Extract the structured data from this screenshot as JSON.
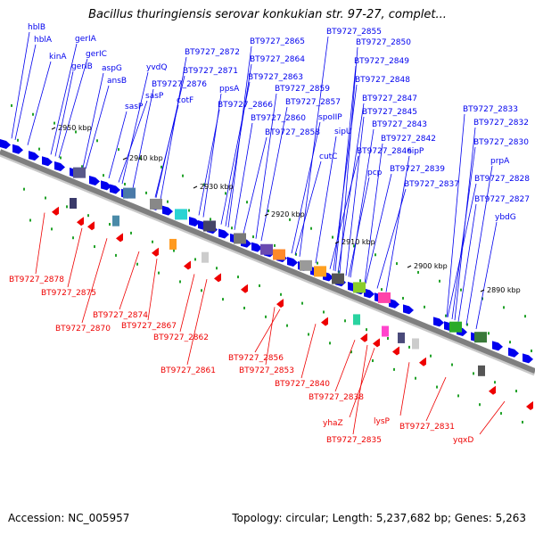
{
  "title": "Bacillus thuringiensis serovar konkukian str. 97-27, complet...",
  "footer": {
    "accession": "Accession: NC_005957",
    "summary": "Topology: circular; Length: 5,237,682 bp; Genes: 5,263"
  },
  "colors": {
    "plus_strand": "#0000ee",
    "minus_strand": "#ee0000",
    "backbone": "#7f7f7f",
    "tick": "#22a22a"
  },
  "scale_ticks": [
    "2950 kbp",
    "2940 kbp",
    "2930 kbp",
    "2920 kbp",
    "2910 kbp",
    "2900 kbp",
    "2890 kbp"
  ],
  "plus_labels": [
    "hblB",
    "hblA",
    "kinA",
    "gerIA",
    "gerIC",
    "gerIB",
    "aspG",
    "ansB",
    "yvdQ",
    "sasP",
    "sasP",
    "BT9727_2876",
    "cotF",
    "BT9727_2872",
    "BT9727_2871",
    "ppsA",
    "BT9727_2866",
    "BT9727_2865",
    "BT9727_2864",
    "BT9727_2863",
    "BT9727_2860",
    "BT9727_2859",
    "BT9727_2858",
    "BT9727_2857",
    "BT9727_2855",
    "BT9727_2850",
    "BT9727_2849",
    "BT9727_2848",
    "BT9727_2847",
    "spoIIP",
    "BT9727_2845",
    "sipU",
    "BT9727_2843",
    "cutC",
    "BT9727_2846",
    "BT9727_2842",
    "pcp",
    "sipP",
    "BT9727_2839",
    "BT9727_2837",
    "BT9727_2833",
    "BT9727_2832",
    "BT9727_2830",
    "prpA",
    "BT9727_2828",
    "BT9727_2827",
    "ybdG"
  ],
  "minus_labels": [
    "BT9727_2878",
    "BT9727_2875",
    "BT9727_2874",
    "BT9727_2870",
    "BT9727_2867",
    "BT9727_2862",
    "BT9727_2861",
    "BT9727_2856",
    "BT9727_2853",
    "BT9727_2840",
    "BT9727_2838",
    "yhaZ",
    "lysP",
    "BT9727_2835",
    "BT9727_2831",
    "yqxD"
  ]
}
